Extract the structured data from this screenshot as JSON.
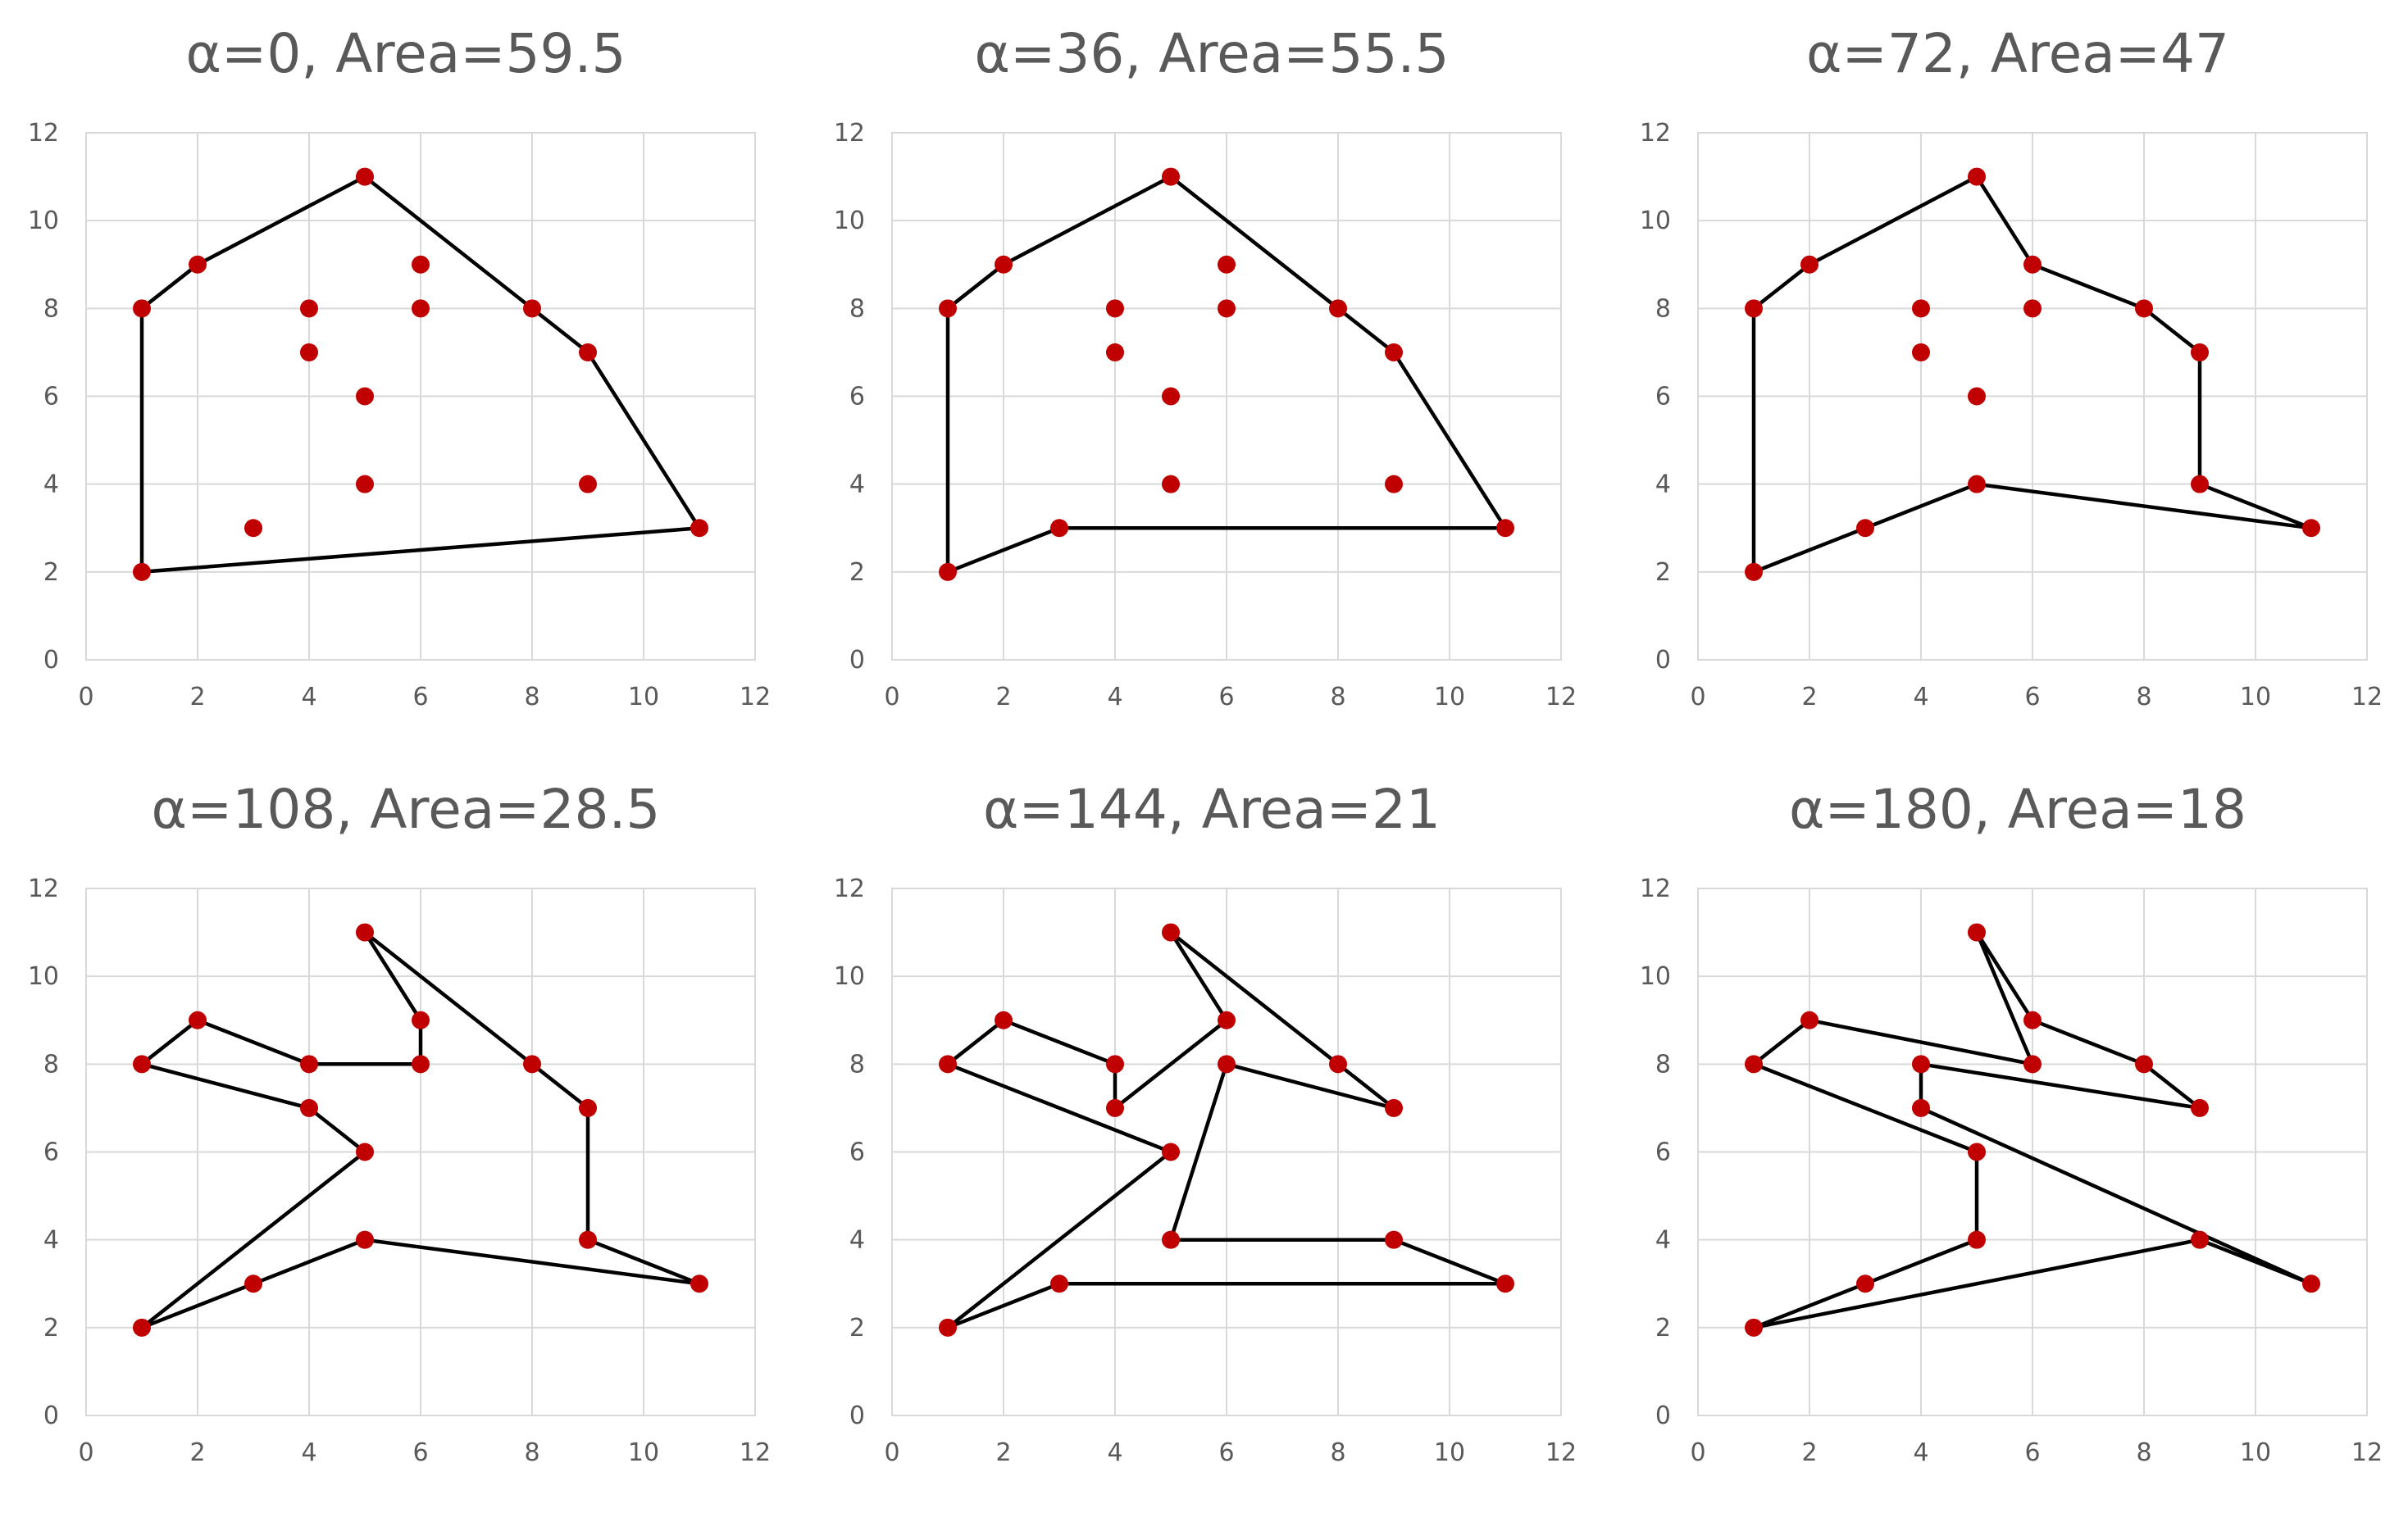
{
  "chart_data": [
    {
      "type": "scatter",
      "title": "α=0, Area=59.5",
      "xlim": [
        0,
        12
      ],
      "ylim": [
        0,
        12
      ],
      "xticks": [
        0,
        2,
        4,
        6,
        8,
        10,
        12
      ],
      "yticks": [
        0,
        2,
        4,
        6,
        8,
        10,
        12
      ],
      "grid": true,
      "points": [
        [
          1,
          2
        ],
        [
          1,
          8
        ],
        [
          2,
          9
        ],
        [
          3,
          3
        ],
        [
          4,
          7
        ],
        [
          4,
          8
        ],
        [
          5,
          4
        ],
        [
          5,
          6
        ],
        [
          5,
          11
        ],
        [
          6,
          8
        ],
        [
          6,
          9
        ],
        [
          8,
          8
        ],
        [
          9,
          4
        ],
        [
          9,
          7
        ],
        [
          11,
          3
        ]
      ],
      "hull": [
        [
          1,
          2
        ],
        [
          1,
          8
        ],
        [
          2,
          9
        ],
        [
          5,
          11
        ],
        [
          8,
          8
        ],
        [
          9,
          7
        ],
        [
          11,
          3
        ],
        [
          1,
          2
        ]
      ]
    },
    {
      "type": "scatter",
      "title": "α=36, Area=55.5",
      "xlim": [
        0,
        12
      ],
      "ylim": [
        0,
        12
      ],
      "xticks": [
        0,
        2,
        4,
        6,
        8,
        10,
        12
      ],
      "yticks": [
        0,
        2,
        4,
        6,
        8,
        10,
        12
      ],
      "grid": true,
      "points": [
        [
          1,
          2
        ],
        [
          1,
          8
        ],
        [
          2,
          9
        ],
        [
          3,
          3
        ],
        [
          4,
          7
        ],
        [
          4,
          8
        ],
        [
          5,
          4
        ],
        [
          5,
          6
        ],
        [
          5,
          11
        ],
        [
          6,
          8
        ],
        [
          6,
          9
        ],
        [
          8,
          8
        ],
        [
          9,
          4
        ],
        [
          9,
          7
        ],
        [
          11,
          3
        ]
      ],
      "hull": [
        [
          1,
          2
        ],
        [
          1,
          8
        ],
        [
          2,
          9
        ],
        [
          5,
          11
        ],
        [
          8,
          8
        ],
        [
          9,
          7
        ],
        [
          11,
          3
        ],
        [
          3,
          3
        ],
        [
          1,
          2
        ]
      ]
    },
    {
      "type": "scatter",
      "title": "α=72, Area=47",
      "xlim": [
        0,
        12
      ],
      "ylim": [
        0,
        12
      ],
      "xticks": [
        0,
        2,
        4,
        6,
        8,
        10,
        12
      ],
      "yticks": [
        0,
        2,
        4,
        6,
        8,
        10,
        12
      ],
      "grid": true,
      "points": [
        [
          1,
          2
        ],
        [
          1,
          8
        ],
        [
          2,
          9
        ],
        [
          3,
          3
        ],
        [
          4,
          7
        ],
        [
          4,
          8
        ],
        [
          5,
          4
        ],
        [
          5,
          6
        ],
        [
          5,
          11
        ],
        [
          6,
          8
        ],
        [
          6,
          9
        ],
        [
          8,
          8
        ],
        [
          9,
          4
        ],
        [
          9,
          7
        ],
        [
          11,
          3
        ]
      ],
      "hull": [
        [
          1,
          2
        ],
        [
          1,
          8
        ],
        [
          2,
          9
        ],
        [
          5,
          11
        ],
        [
          6,
          9
        ],
        [
          8,
          8
        ],
        [
          9,
          7
        ],
        [
          9,
          4
        ],
        [
          11,
          3
        ],
        [
          5,
          4
        ],
        [
          3,
          3
        ],
        [
          1,
          2
        ]
      ]
    },
    {
      "type": "scatter",
      "title": "α=108, Area=28.5",
      "xlim": [
        0,
        12
      ],
      "ylim": [
        0,
        12
      ],
      "xticks": [
        0,
        2,
        4,
        6,
        8,
        10,
        12
      ],
      "yticks": [
        0,
        2,
        4,
        6,
        8,
        10,
        12
      ],
      "grid": true,
      "points": [
        [
          1,
          2
        ],
        [
          1,
          8
        ],
        [
          2,
          9
        ],
        [
          3,
          3
        ],
        [
          4,
          7
        ],
        [
          4,
          8
        ],
        [
          5,
          4
        ],
        [
          5,
          6
        ],
        [
          5,
          11
        ],
        [
          6,
          8
        ],
        [
          6,
          9
        ],
        [
          8,
          8
        ],
        [
          9,
          4
        ],
        [
          9,
          7
        ],
        [
          11,
          3
        ]
      ],
      "hull": [
        [
          1,
          2
        ],
        [
          5,
          6
        ],
        [
          4,
          7
        ],
        [
          1,
          8
        ],
        [
          2,
          9
        ],
        [
          4,
          8
        ],
        [
          6,
          8
        ],
        [
          6,
          9
        ],
        [
          5,
          11
        ],
        [
          8,
          8
        ],
        [
          9,
          7
        ],
        [
          9,
          4
        ],
        [
          11,
          3
        ],
        [
          5,
          4
        ],
        [
          3,
          3
        ],
        [
          1,
          2
        ]
      ]
    },
    {
      "type": "scatter",
      "title": "α=144, Area=21",
      "xlim": [
        0,
        12
      ],
      "ylim": [
        0,
        12
      ],
      "xticks": [
        0,
        2,
        4,
        6,
        8,
        10,
        12
      ],
      "yticks": [
        0,
        2,
        4,
        6,
        8,
        10,
        12
      ],
      "grid": true,
      "points": [
        [
          1,
          2
        ],
        [
          1,
          8
        ],
        [
          2,
          9
        ],
        [
          3,
          3
        ],
        [
          4,
          7
        ],
        [
          4,
          8
        ],
        [
          5,
          4
        ],
        [
          5,
          6
        ],
        [
          5,
          11
        ],
        [
          6,
          8
        ],
        [
          6,
          9
        ],
        [
          8,
          8
        ],
        [
          9,
          4
        ],
        [
          9,
          7
        ],
        [
          11,
          3
        ]
      ],
      "hull": [
        [
          1,
          2
        ],
        [
          5,
          6
        ],
        [
          1,
          8
        ],
        [
          2,
          9
        ],
        [
          4,
          8
        ],
        [
          4,
          7
        ],
        [
          6,
          9
        ],
        [
          5,
          11
        ],
        [
          8,
          8
        ],
        [
          9,
          7
        ],
        [
          6,
          8
        ],
        [
          5,
          4
        ],
        [
          9,
          4
        ],
        [
          11,
          3
        ],
        [
          3,
          3
        ],
        [
          1,
          2
        ]
      ]
    },
    {
      "type": "scatter",
      "title": "α=180, Area=18",
      "xlim": [
        0,
        12
      ],
      "ylim": [
        0,
        12
      ],
      "xticks": [
        0,
        2,
        4,
        6,
        8,
        10,
        12
      ],
      "yticks": [
        0,
        2,
        4,
        6,
        8,
        10,
        12
      ],
      "grid": true,
      "points": [
        [
          1,
          2
        ],
        [
          1,
          8
        ],
        [
          2,
          9
        ],
        [
          3,
          3
        ],
        [
          4,
          7
        ],
        [
          4,
          8
        ],
        [
          5,
          4
        ],
        [
          5,
          6
        ],
        [
          5,
          11
        ],
        [
          6,
          8
        ],
        [
          6,
          9
        ],
        [
          8,
          8
        ],
        [
          9,
          4
        ],
        [
          9,
          7
        ],
        [
          11,
          3
        ]
      ],
      "hull": [
        [
          1,
          2
        ],
        [
          3,
          3
        ],
        [
          5,
          4
        ],
        [
          5,
          6
        ],
        [
          1,
          8
        ],
        [
          2,
          9
        ],
        [
          6,
          8
        ],
        [
          5,
          11
        ],
        [
          6,
          9
        ],
        [
          8,
          8
        ],
        [
          9,
          7
        ],
        [
          4,
          8
        ],
        [
          4,
          7
        ],
        [
          11,
          3
        ],
        [
          9,
          4
        ],
        [
          1,
          2
        ]
      ]
    }
  ],
  "colors": {
    "marker": "#c00000",
    "line": "#000000",
    "grid": "#d9d9d9",
    "text": "#595959"
  }
}
